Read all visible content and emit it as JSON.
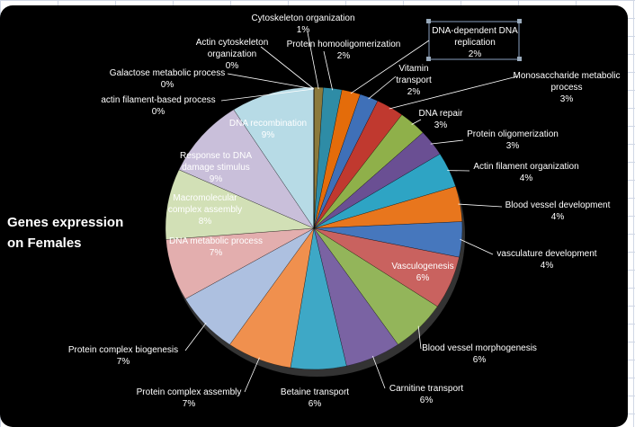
{
  "chart_data": {
    "type": "pie",
    "title": "Genes expression on Females",
    "categories": [
      "Cytoskeleton organization",
      "Protein homooligomerization",
      "DNA-dependent DNA replication",
      "Vitamin transport",
      "Monosaccharide metabolic process",
      "DNA repair",
      "Protein oligomerization",
      "Actin filament organization",
      "Blood vessel development",
      "vasculature development",
      "Vasculogenesis",
      "Blood vessel morphogenesis",
      "Carnitine transport",
      "Betaine transport",
      "Protein complex assembly",
      "Protein complex biogenesis",
      "DNA metabolic process",
      "Macromolecular complex assembly",
      "Response to DNA damage stimulus",
      "DNA recombination",
      "actin filament-based process",
      "Galactose metabolic process",
      "Actin cytoskeleton organization"
    ],
    "values": [
      1,
      2,
      2,
      2,
      3,
      3,
      3,
      4,
      4,
      4,
      6,
      6,
      6,
      6,
      7,
      7,
      7,
      8,
      9,
      9,
      0,
      0,
      0
    ],
    "value_labels": [
      "1%",
      "2%",
      "2%",
      "2%",
      "3%",
      "3%",
      "3%",
      "4%",
      "4%",
      "4%",
      "6%",
      "6%",
      "6%",
      "6%",
      "7%",
      "7%",
      "7%",
      "8%",
      "9%",
      "9%",
      "0%",
      "0%",
      "0%"
    ],
    "colors": [
      "#8c7a3c",
      "#2e8ca6",
      "#e46c0a",
      "#3f70b8",
      "#c0392f",
      "#8fb04a",
      "#6a4f93",
      "#2ea4c4",
      "#e8761d",
      "#4677bd",
      "#c9625f",
      "#93b55a",
      "#7a63a3",
      "#3ea8c6",
      "#f0904e",
      "#adc0e0",
      "#e3aeae",
      "#d2e0b6",
      "#c9bfda",
      "#b7dbe6",
      "#f9c79a",
      "#2a4f87",
      "#8a2a26"
    ]
  }
}
